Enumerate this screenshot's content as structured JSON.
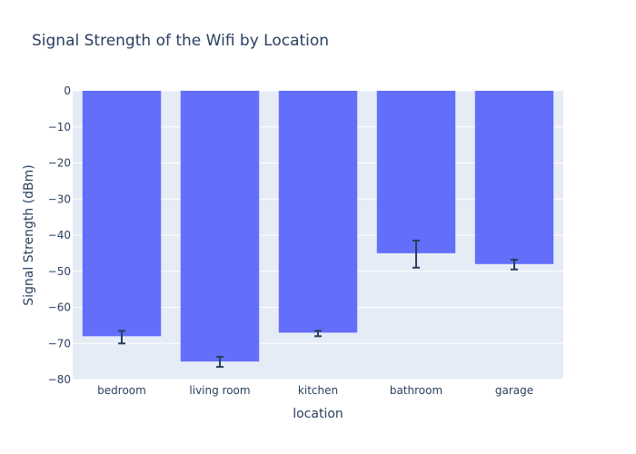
{
  "chart_data": {
    "type": "bar",
    "title": "Signal Strength of the Wifi by Location",
    "xlabel": "location",
    "ylabel": "Signal Strength (dBm)",
    "categories": [
      "bedroom",
      "living room",
      "kitchen",
      "bathroom",
      "garage"
    ],
    "values": [
      -68,
      -75,
      -67,
      -45,
      -48
    ],
    "error_lower": [
      -70,
      -76.5,
      -68,
      -49,
      -49.5
    ],
    "error_upper": [
      -66.5,
      -73.7,
      -66.5,
      -41.5,
      -46.8
    ],
    "ylim": [
      -80,
      0
    ],
    "yticks": [
      0,
      -10,
      -20,
      -30,
      -40,
      -50,
      -60,
      -70,
      -80
    ],
    "ytick_labels": [
      "0",
      "−10",
      "−20",
      "−30",
      "−40",
      "−50",
      "−60",
      "−70",
      "−80"
    ],
    "grid": true,
    "colors": {
      "bar": "#636efa",
      "plot_bg": "#e5ecf6",
      "grid": "#ffffff",
      "error_bar": "#2a3f5f",
      "text": "#2a3f5f"
    }
  }
}
